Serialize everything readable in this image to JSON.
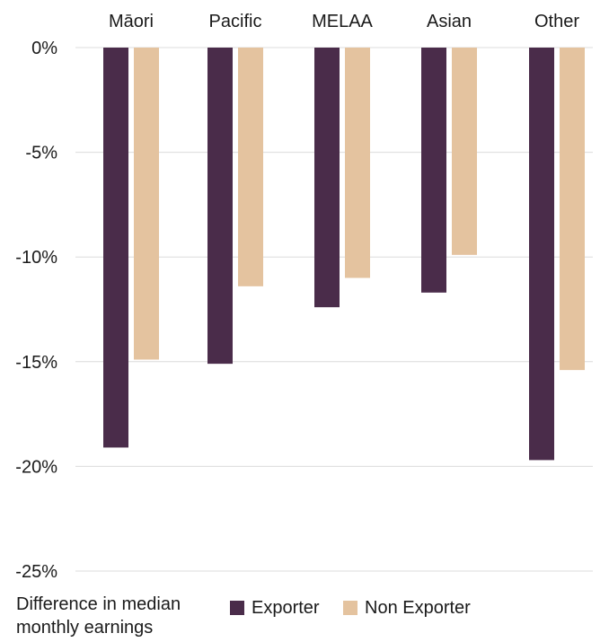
{
  "chart_data": {
    "type": "bar",
    "categories": [
      "Māori",
      "Pacific",
      "MELAA",
      "Asian",
      "Other"
    ],
    "series": [
      {
        "name": "Exporter",
        "values": [
          -19.1,
          -15.1,
          -12.4,
          -11.7,
          -19.7
        ],
        "color": "#4a2c4a"
      },
      {
        "name": "Non Exporter",
        "values": [
          -14.9,
          -11.4,
          -11.0,
          -9.9,
          -15.4
        ],
        "color": "#e4c39f"
      }
    ],
    "ylim": [
      -25,
      0
    ],
    "y_ticks": [
      0,
      -5,
      -10,
      -15,
      -20,
      -25
    ],
    "y_tick_labels": [
      "0%",
      "-5%",
      "-10%",
      "-15%",
      "-20%",
      "-25%"
    ],
    "grid": true,
    "legend_title": "Difference in median monthly earnings",
    "legend_placement": "bottom",
    "title": "",
    "xlabel": "",
    "ylabel": ""
  }
}
